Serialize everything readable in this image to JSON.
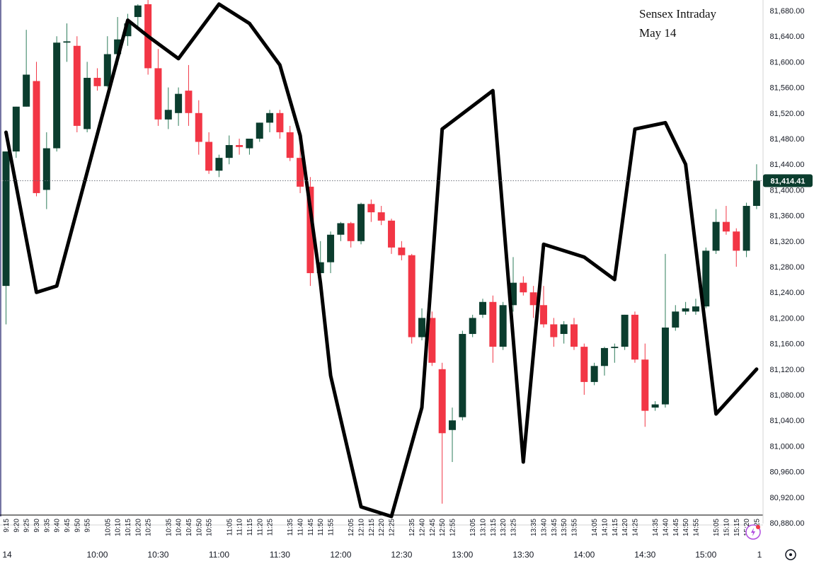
{
  "annotation": {
    "line1": "Sensex Intraday",
    "line2": "May 14"
  },
  "colors": {
    "up": "#0b3d2e",
    "down": "#f23645",
    "overlay": "#000000",
    "current_bg": "#0b3d2e",
    "axis_text": "#131722"
  },
  "current_price": {
    "value": 81414.41,
    "label": "81,414.41"
  },
  "axis_bottom_right_icon": "gauge-icon",
  "chart_data": {
    "type": "candlestick",
    "title": "Sensex Intraday",
    "subtitle": "May 14",
    "ylim": [
      80880,
      81700
    ],
    "y_ticks": [
      80880,
      80920,
      80960,
      81000,
      81040,
      81080,
      81120,
      81160,
      81200,
      81240,
      81280,
      81320,
      81360,
      81400,
      81440,
      81480,
      81520,
      81560,
      81600,
      81640,
      81680
    ],
    "y_tick_labels": [
      "80,880.00",
      "80,920.00",
      "80,960.00",
      "81,000.00",
      "81,040.00",
      "81,080.00",
      "81,120.00",
      "81,160.00",
      "81,200.00",
      "81,240.00",
      "81,280.00",
      "81,320.00",
      "81,360.00",
      "81,400.00",
      "81,440.00",
      "81,480.00",
      "81,520.00",
      "81,560.00",
      "81,600.00",
      "81,640.00",
      "81,680.00"
    ],
    "x_minor_labels": [
      "9:15",
      "9:20",
      "9:25",
      "9:30",
      "9:35",
      "9:40",
      "9:45",
      "9:50",
      "9:55",
      "10:05",
      "10:10",
      "10:15",
      "10:20",
      "10:25",
      "10:35",
      "10:40",
      "10:45",
      "10:50",
      "10:55",
      "11:05",
      "11:10",
      "11:15",
      "11:20",
      "11:25",
      "11:35",
      "11:40",
      "11:45",
      "11:50",
      "11:55",
      "12:05",
      "12:10",
      "12:15",
      "12:20",
      "12:25",
      "12:35",
      "12:40",
      "12:45",
      "12:50",
      "12:55",
      "13:05",
      "13:10",
      "13:15",
      "13:20",
      "13:25",
      "13:35",
      "13:40",
      "13:45",
      "13:50",
      "13:55",
      "14:05",
      "14:10",
      "14:15",
      "14:20",
      "14:25",
      "14:35",
      "14:40",
      "14:45",
      "14:50",
      "14:55",
      "15:05",
      "15:10",
      "15:15",
      "15:20",
      "15:25"
    ],
    "x_major_labels": [
      "14",
      "10:00",
      "10:30",
      "11:00",
      "11:30",
      "12:00",
      "12:30",
      "13:00",
      "13:30",
      "14:00",
      "14:30",
      "15:00",
      "1"
    ],
    "candles": [
      {
        "t": "9:15",
        "o": 81250,
        "h": 81460,
        "l": 81190,
        "c": 81460
      },
      {
        "t": "9:20",
        "o": 81460,
        "h": 81530,
        "l": 81450,
        "c": 81530
      },
      {
        "t": "9:25",
        "o": 81530,
        "h": 81650,
        "l": 81530,
        "c": 81580
      },
      {
        "t": "9:30",
        "o": 81570,
        "h": 81600,
        "l": 81390,
        "c": 81395
      },
      {
        "t": "9:35",
        "o": 81400,
        "h": 81490,
        "l": 81370,
        "c": 81465
      },
      {
        "t": "9:40",
        "o": 81465,
        "h": 81640,
        "l": 81460,
        "c": 81630
      },
      {
        "t": "9:45",
        "o": 81630,
        "h": 81660,
        "l": 81600,
        "c": 81632
      },
      {
        "t": "9:50",
        "o": 81625,
        "h": 81640,
        "l": 81490,
        "c": 81500
      },
      {
        "t": "9:55",
        "o": 81495,
        "h": 81600,
        "l": 81490,
        "c": 81575
      },
      {
        "t": "10:00",
        "o": 81575,
        "h": 81590,
        "l": 81555,
        "c": 81562
      },
      {
        "t": "10:05",
        "o": 81562,
        "h": 81640,
        "l": 81560,
        "c": 81612
      },
      {
        "t": "10:10",
        "o": 81612,
        "h": 81670,
        "l": 81595,
        "c": 81635
      },
      {
        "t": "10:15",
        "o": 81640,
        "h": 81675,
        "l": 81625,
        "c": 81660
      },
      {
        "t": "10:20",
        "o": 81670,
        "h": 81690,
        "l": 81655,
        "c": 81688
      },
      {
        "t": "10:25",
        "o": 81690,
        "h": 81700,
        "l": 81580,
        "c": 81590
      },
      {
        "t": "10:30",
        "o": 81590,
        "h": 81620,
        "l": 81500,
        "c": 81510
      },
      {
        "t": "10:35",
        "o": 81510,
        "h": 81560,
        "l": 81495,
        "c": 81525
      },
      {
        "t": "10:40",
        "o": 81520,
        "h": 81560,
        "l": 81500,
        "c": 81550
      },
      {
        "t": "10:45",
        "o": 81555,
        "h": 81595,
        "l": 81500,
        "c": 81520
      },
      {
        "t": "10:50",
        "o": 81520,
        "h": 81540,
        "l": 81455,
        "c": 81475
      },
      {
        "t": "10:55",
        "o": 81475,
        "h": 81490,
        "l": 81425,
        "c": 81430
      },
      {
        "t": "11:00",
        "o": 81430,
        "h": 81455,
        "l": 81420,
        "c": 81450
      },
      {
        "t": "11:05",
        "o": 81450,
        "h": 81485,
        "l": 81440,
        "c": 81470
      },
      {
        "t": "11:10",
        "o": 81470,
        "h": 81480,
        "l": 81455,
        "c": 81467
      },
      {
        "t": "11:15",
        "o": 81465,
        "h": 81480,
        "l": 81455,
        "c": 81480
      },
      {
        "t": "11:20",
        "o": 81480,
        "h": 81505,
        "l": 81475,
        "c": 81505
      },
      {
        "t": "11:25",
        "o": 81505,
        "h": 81525,
        "l": 81490,
        "c": 81520
      },
      {
        "t": "11:30",
        "o": 81520,
        "h": 81525,
        "l": 81480,
        "c": 81490
      },
      {
        "t": "11:35",
        "o": 81490,
        "h": 81500,
        "l": 81445,
        "c": 81450
      },
      {
        "t": "11:40",
        "o": 81450,
        "h": 81470,
        "l": 81395,
        "c": 81405
      },
      {
        "t": "11:45",
        "o": 81405,
        "h": 81420,
        "l": 81250,
        "c": 81270
      },
      {
        "t": "11:50",
        "o": 81270,
        "h": 81320,
        "l": 81270,
        "c": 81287
      },
      {
        "t": "11:55",
        "o": 81287,
        "h": 81335,
        "l": 81270,
        "c": 81330
      },
      {
        "t": "12:00",
        "o": 81330,
        "h": 81350,
        "l": 81320,
        "c": 81348
      },
      {
        "t": "12:05",
        "o": 81348,
        "h": 81350,
        "l": 81310,
        "c": 81320
      },
      {
        "t": "12:10",
        "o": 81320,
        "h": 81380,
        "l": 81315,
        "c": 81378
      },
      {
        "t": "12:15",
        "o": 81378,
        "h": 81385,
        "l": 81350,
        "c": 81365
      },
      {
        "t": "12:20",
        "o": 81365,
        "h": 81375,
        "l": 81345,
        "c": 81352
      },
      {
        "t": "12:25",
        "o": 81352,
        "h": 81355,
        "l": 81300,
        "c": 81310
      },
      {
        "t": "12:30",
        "o": 81310,
        "h": 81320,
        "l": 81290,
        "c": 81298
      },
      {
        "t": "12:35",
        "o": 81298,
        "h": 81300,
        "l": 81160,
        "c": 81170
      },
      {
        "t": "12:40",
        "o": 81170,
        "h": 81215,
        "l": 81165,
        "c": 81200
      },
      {
        "t": "12:45",
        "o": 81200,
        "h": 81210,
        "l": 81125,
        "c": 81130
      },
      {
        "t": "12:50",
        "o": 81120,
        "h": 81130,
        "l": 80910,
        "c": 81020
      },
      {
        "t": "12:55",
        "o": 81025,
        "h": 81060,
        "l": 80975,
        "c": 81040
      },
      {
        "t": "13:00",
        "o": 81045,
        "h": 81180,
        "l": 81040,
        "c": 81175
      },
      {
        "t": "13:05",
        "o": 81175,
        "h": 81205,
        "l": 81170,
        "c": 81200
      },
      {
        "t": "13:10",
        "o": 81205,
        "h": 81230,
        "l": 81200,
        "c": 81225
      },
      {
        "t": "13:15",
        "o": 81225,
        "h": 81235,
        "l": 81130,
        "c": 81155
      },
      {
        "t": "13:20",
        "o": 81155,
        "h": 81225,
        "l": 81150,
        "c": 81220
      },
      {
        "t": "13:25",
        "o": 81220,
        "h": 81295,
        "l": 81210,
        "c": 81255
      },
      {
        "t": "13:30",
        "o": 81255,
        "h": 81265,
        "l": 81235,
        "c": 81240
      },
      {
        "t": "13:35",
        "o": 81240,
        "h": 81250,
        "l": 81200,
        "c": 81220
      },
      {
        "t": "13:40",
        "o": 81220,
        "h": 81250,
        "l": 81185,
        "c": 81190
      },
      {
        "t": "13:45",
        "o": 81190,
        "h": 81200,
        "l": 81155,
        "c": 81170
      },
      {
        "t": "13:50",
        "o": 81175,
        "h": 81195,
        "l": 81160,
        "c": 81190
      },
      {
        "t": "13:55",
        "o": 81190,
        "h": 81200,
        "l": 81150,
        "c": 81155
      },
      {
        "t": "14:00",
        "o": 81155,
        "h": 81160,
        "l": 81080,
        "c": 81100
      },
      {
        "t": "14:05",
        "o": 81100,
        "h": 81130,
        "l": 81095,
        "c": 81125
      },
      {
        "t": "14:10",
        "o": 81125,
        "h": 81155,
        "l": 81110,
        "c": 81153
      },
      {
        "t": "14:15",
        "o": 81153,
        "h": 81160,
        "l": 81130,
        "c": 81155
      },
      {
        "t": "14:20",
        "o": 81155,
        "h": 81205,
        "l": 81150,
        "c": 81205
      },
      {
        "t": "14:25",
        "o": 81205,
        "h": 81210,
        "l": 81130,
        "c": 81135
      },
      {
        "t": "14:30",
        "o": 81135,
        "h": 81160,
        "l": 81030,
        "c": 81055
      },
      {
        "t": "14:35",
        "o": 81060,
        "h": 81070,
        "l": 81055,
        "c": 81065
      },
      {
        "t": "14:40",
        "o": 81065,
        "h": 81300,
        "l": 81060,
        "c": 81185
      },
      {
        "t": "14:45",
        "o": 81185,
        "h": 81220,
        "l": 81180,
        "c": 81210
      },
      {
        "t": "14:50",
        "o": 81210,
        "h": 81225,
        "l": 81205,
        "c": 81215
      },
      {
        "t": "14:55",
        "o": 81210,
        "h": 81230,
        "l": 81205,
        "c": 81218
      },
      {
        "t": "15:00",
        "o": 81218,
        "h": 81310,
        "l": 81215,
        "c": 81305
      },
      {
        "t": "15:05",
        "o": 81305,
        "h": 81370,
        "l": 81300,
        "c": 81350
      },
      {
        "t": "15:10",
        "o": 81350,
        "h": 81375,
        "l": 81330,
        "c": 81335
      },
      {
        "t": "15:15",
        "o": 81335,
        "h": 81340,
        "l": 81280,
        "c": 81305
      },
      {
        "t": "15:20",
        "o": 81305,
        "h": 81380,
        "l": 81295,
        "c": 81375
      },
      {
        "t": "15:25",
        "o": 81375,
        "h": 81440,
        "l": 81370,
        "c": 81414.41
      }
    ],
    "overlay_line": {
      "name": "",
      "points": [
        [
          "9:15",
          81490
        ],
        [
          "9:30",
          81240
        ],
        [
          "9:40",
          81250
        ],
        [
          "10:15",
          81665
        ],
        [
          "10:25",
          81640
        ],
        [
          "10:40",
          81605
        ],
        [
          "11:00",
          81690
        ],
        [
          "11:15",
          81660
        ],
        [
          "11:30",
          81595
        ],
        [
          "11:40",
          81485
        ],
        [
          "11:50",
          81255
        ],
        [
          "11:55",
          81110
        ],
        [
          "12:10",
          80905
        ],
        [
          "12:25",
          80890
        ],
        [
          "12:40",
          81060
        ],
        [
          "12:50",
          81495
        ],
        [
          "13:15",
          81555
        ],
        [
          "13:30",
          80975
        ],
        [
          "13:40",
          81315
        ],
        [
          "14:00",
          81295
        ],
        [
          "14:15",
          81260
        ],
        [
          "14:25",
          81495
        ],
        [
          "14:40",
          81505
        ],
        [
          "14:50",
          81440
        ],
        [
          "15:05",
          81050
        ],
        [
          "15:25",
          81120
        ]
      ]
    }
  }
}
